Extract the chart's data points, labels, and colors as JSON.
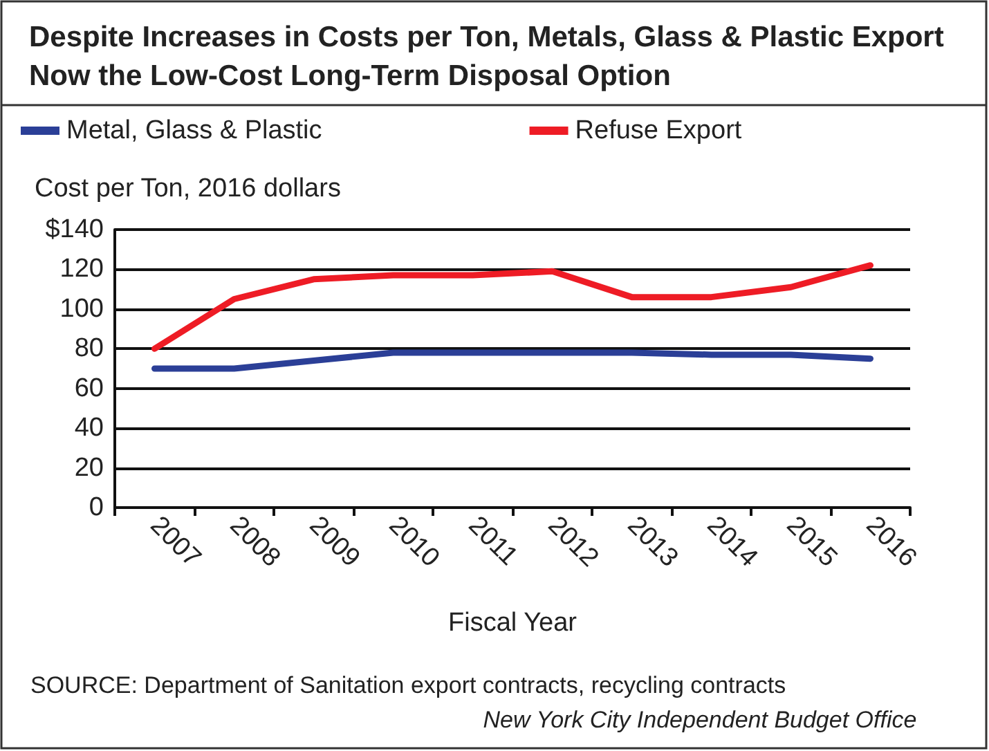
{
  "chart_data": {
    "type": "line",
    "title": "Despite Increases in Costs per Ton, Metals, Glass & Plastic Export Now the Low-Cost Long-Term Disposal Option",
    "ylabel": "Cost per Ton, 2016 dollars",
    "xlabel": "Fiscal Year",
    "categories": [
      "2007",
      "2008",
      "2009",
      "2010",
      "2011",
      "2012",
      "2013",
      "2014",
      "2015",
      "2016"
    ],
    "series": [
      {
        "name": "Metal, Glass & Plastic",
        "color": "#2b3f97",
        "values": [
          70,
          70,
          74,
          78,
          78,
          78,
          78,
          77,
          77,
          75
        ]
      },
      {
        "name": "Refuse Export",
        "color": "#ee1c25",
        "values": [
          80,
          105,
          115,
          117,
          117,
          119,
          106,
          106,
          111,
          122
        ]
      }
    ],
    "ylim": [
      0,
      140
    ],
    "yticks": [
      0,
      20,
      40,
      60,
      80,
      100,
      120,
      {
        "value": 140,
        "label": "$140"
      }
    ],
    "grid": "y",
    "legend": "top left",
    "marker": "none",
    "line_style": "solid",
    "annotations": [
      "SOURCE: Department of Sanitation export contracts, recycling contracts",
      "New York City Independent Budget Office"
    ]
  }
}
